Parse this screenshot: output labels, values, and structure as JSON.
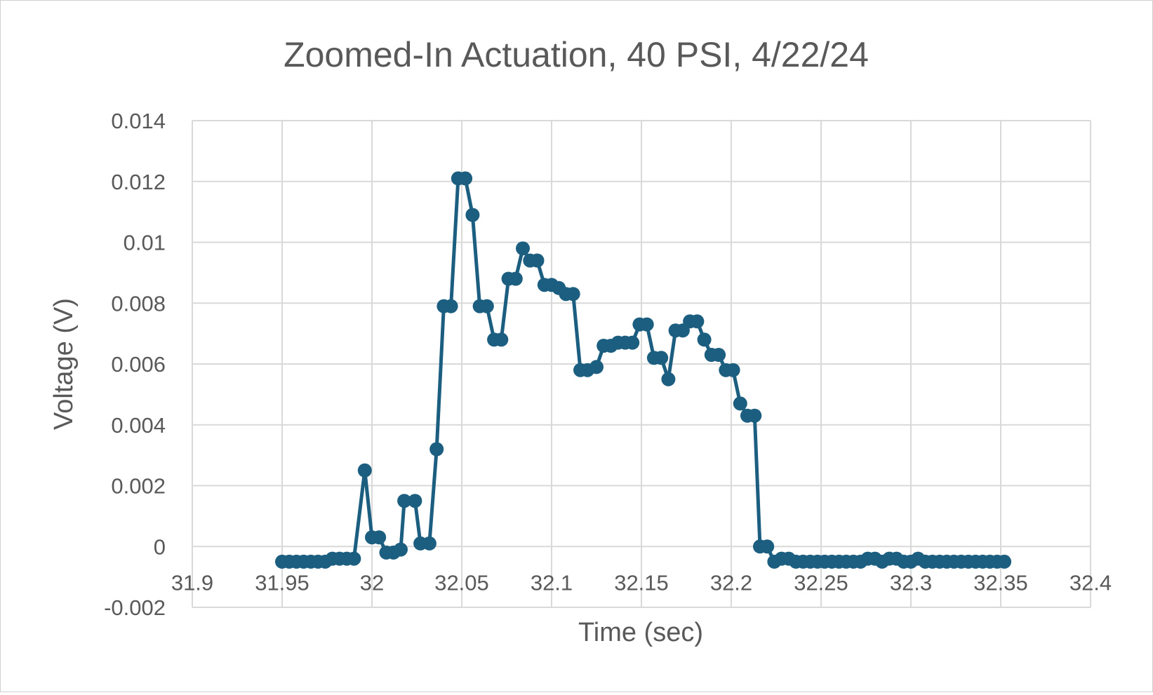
{
  "chart_data": {
    "type": "scatter",
    "title": "Zoomed-In Actuation, 40 PSI, 4/22/24",
    "xlabel": "Time (sec)",
    "ylabel": "Voltage (V)",
    "xlim": [
      31.9,
      32.4
    ],
    "ylim": [
      -0.002,
      0.014
    ],
    "x_ticks": [
      "31.9",
      "31.95",
      "32",
      "32.05",
      "32.1",
      "32.15",
      "32.2",
      "32.25",
      "32.3",
      "32.35",
      "32.4"
    ],
    "y_ticks": [
      "0.014",
      "0.012",
      "0.01",
      "0.008",
      "0.006",
      "0.004",
      "0.002",
      "0",
      "-0.002"
    ],
    "grid": true,
    "legend": "none",
    "series_color": "#1b5e80",
    "points": [
      [
        31.95,
        -0.0005
      ],
      [
        31.954,
        -0.0005
      ],
      [
        31.958,
        -0.0005
      ],
      [
        31.962,
        -0.0005
      ],
      [
        31.966,
        -0.0005
      ],
      [
        31.97,
        -0.0005
      ],
      [
        31.974,
        -0.0005
      ],
      [
        31.978,
        -0.0004
      ],
      [
        31.982,
        -0.0004
      ],
      [
        31.986,
        -0.0004
      ],
      [
        31.99,
        -0.0004
      ],
      [
        31.996,
        0.0025
      ],
      [
        32.0,
        0.0003
      ],
      [
        32.004,
        0.0003
      ],
      [
        32.008,
        -0.0002
      ],
      [
        32.012,
        -0.0002
      ],
      [
        32.016,
        -0.0001
      ],
      [
        32.018,
        0.0015
      ],
      [
        32.024,
        0.0015
      ],
      [
        32.027,
        0.0001
      ],
      [
        32.032,
        0.0001
      ],
      [
        32.036,
        0.0032
      ],
      [
        32.04,
        0.0079
      ],
      [
        32.044,
        0.0079
      ],
      [
        32.048,
        0.0121
      ],
      [
        32.052,
        0.0121
      ],
      [
        32.056,
        0.0109
      ],
      [
        32.06,
        0.0079
      ],
      [
        32.064,
        0.0079
      ],
      [
        32.068,
        0.0068
      ],
      [
        32.072,
        0.0068
      ],
      [
        32.076,
        0.0088
      ],
      [
        32.08,
        0.0088
      ],
      [
        32.084,
        0.0098
      ],
      [
        32.088,
        0.0094
      ],
      [
        32.092,
        0.0094
      ],
      [
        32.096,
        0.0086
      ],
      [
        32.1,
        0.0086
      ],
      [
        32.104,
        0.0085
      ],
      [
        32.108,
        0.0083
      ],
      [
        32.112,
        0.0083
      ],
      [
        32.116,
        0.0058
      ],
      [
        32.12,
        0.0058
      ],
      [
        32.125,
        0.0059
      ],
      [
        32.129,
        0.0066
      ],
      [
        32.133,
        0.0066
      ],
      [
        32.137,
        0.0067
      ],
      [
        32.141,
        0.0067
      ],
      [
        32.145,
        0.0067
      ],
      [
        32.149,
        0.0073
      ],
      [
        32.153,
        0.0073
      ],
      [
        32.157,
        0.0062
      ],
      [
        32.161,
        0.0062
      ],
      [
        32.165,
        0.0055
      ],
      [
        32.169,
        0.0071
      ],
      [
        32.173,
        0.0071
      ],
      [
        32.177,
        0.0074
      ],
      [
        32.181,
        0.0074
      ],
      [
        32.185,
        0.0068
      ],
      [
        32.189,
        0.0063
      ],
      [
        32.193,
        0.0063
      ],
      [
        32.197,
        0.0058
      ],
      [
        32.201,
        0.0058
      ],
      [
        32.205,
        0.0047
      ],
      [
        32.209,
        0.0043
      ],
      [
        32.213,
        0.0043
      ],
      [
        32.216,
        0.0
      ],
      [
        32.22,
        0.0
      ],
      [
        32.224,
        -0.0005
      ],
      [
        32.228,
        -0.0004
      ],
      [
        32.232,
        -0.0004
      ],
      [
        32.236,
        -0.0005
      ],
      [
        32.24,
        -0.0005
      ],
      [
        32.244,
        -0.0005
      ],
      [
        32.248,
        -0.0005
      ],
      [
        32.252,
        -0.0005
      ],
      [
        32.256,
        -0.0005
      ],
      [
        32.26,
        -0.0005
      ],
      [
        32.264,
        -0.0005
      ],
      [
        32.268,
        -0.0005
      ],
      [
        32.272,
        -0.0005
      ],
      [
        32.276,
        -0.0004
      ],
      [
        32.28,
        -0.0004
      ],
      [
        32.284,
        -0.0005
      ],
      [
        32.288,
        -0.0004
      ],
      [
        32.292,
        -0.0004
      ],
      [
        32.296,
        -0.0005
      ],
      [
        32.3,
        -0.0005
      ],
      [
        32.304,
        -0.0004
      ],
      [
        32.308,
        -0.0005
      ],
      [
        32.312,
        -0.0005
      ],
      [
        32.316,
        -0.0005
      ],
      [
        32.32,
        -0.0005
      ],
      [
        32.324,
        -0.0005
      ],
      [
        32.328,
        -0.0005
      ],
      [
        32.332,
        -0.0005
      ],
      [
        32.336,
        -0.0005
      ],
      [
        32.34,
        -0.0005
      ],
      [
        32.344,
        -0.0005
      ],
      [
        32.348,
        -0.0005
      ],
      [
        32.352,
        -0.0005
      ]
    ]
  }
}
